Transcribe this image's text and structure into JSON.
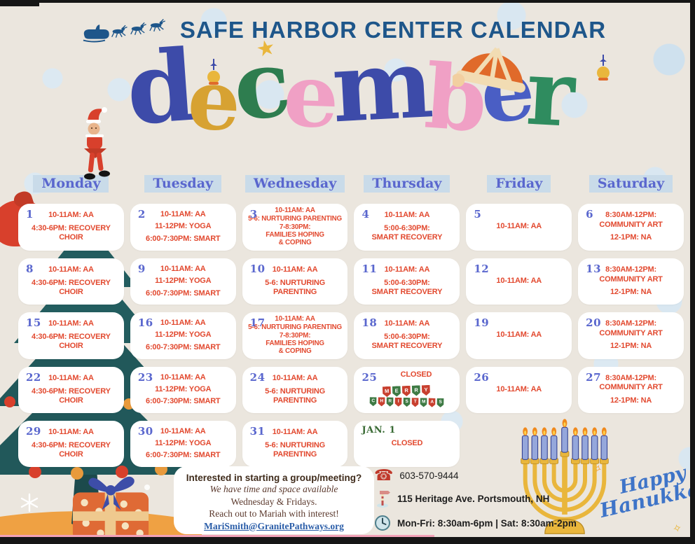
{
  "header": {
    "title": "SAFE HARBOR CENTER CALENDAR",
    "month": "december",
    "month_letters": [
      {
        "ch": "d",
        "color": "#3D4BA9"
      },
      {
        "ch": "e",
        "color": "#D7A232"
      },
      {
        "ch": "c",
        "color": "#2E7D4F"
      },
      {
        "ch": "e",
        "color": "#F0A0C5"
      },
      {
        "ch": "m",
        "color": "#3D4BA9"
      },
      {
        "ch": "b",
        "color": "#F0A0C5"
      },
      {
        "ch": "e",
        "color": "#4A5EC4"
      },
      {
        "ch": "r",
        "color": "#2F8C5F"
      }
    ]
  },
  "weekdays": [
    "Monday",
    "Tuesday",
    "Wednesday",
    "Thursday",
    "Friday",
    "Saturday"
  ],
  "calendar": {
    "rows": [
      [
        {
          "day": "1",
          "events": [
            "10-11AM: AA",
            "4:30-6PM: RECOVERY CHOIR"
          ]
        },
        {
          "day": "2",
          "events": [
            "10-11AM: AA",
            "11-12PM: YOGA",
            "6:00-7:30PM: SMART"
          ]
        },
        {
          "day": "3",
          "compact": true,
          "events": [
            "10-11AM: AA",
            "5-6: NURTURING PARENTING",
            "7-8:30PM:\nFAMILIES HOPING\n& COPING"
          ]
        },
        {
          "day": "4",
          "events": [
            "10-11AM: AA",
            "5:00-6:30PM:\nSMART RECOVERY"
          ]
        },
        {
          "day": "5",
          "events": [
            "10-11AM: AA"
          ]
        },
        {
          "day": "6",
          "events": [
            "8:30AM-12PM:\nCOMMUNITY ART",
            "12-1PM: NA"
          ]
        }
      ],
      [
        {
          "day": "8",
          "events": [
            "10-11AM: AA",
            "4:30-6PM: RECOVERY CHOIR"
          ]
        },
        {
          "day": "9",
          "events": [
            "10-11AM: AA",
            "11-12PM: YOGA",
            "6:00-7:30PM: SMART"
          ]
        },
        {
          "day": "10",
          "events": [
            "10-11AM: AA",
            "5-6: NURTURING\nPARENTING"
          ]
        },
        {
          "day": "11",
          "events": [
            "10-11AM: AA",
            "5:00-6:30PM:\nSMART RECOVERY"
          ]
        },
        {
          "day": "12",
          "events": [
            "10-11AM: AA"
          ]
        },
        {
          "day": "13",
          "events": [
            "8:30AM-12PM:\nCOMMUNITY ART",
            "12-1PM: NA"
          ]
        }
      ],
      [
        {
          "day": "15",
          "events": [
            "10-11AM: AA",
            "4:30-6PM: RECOVERY CHOIR"
          ]
        },
        {
          "day": "16",
          "events": [
            "10-11AM: AA",
            "11-12PM: YOGA",
            "6:00-7:30PM: SMART"
          ]
        },
        {
          "day": "17",
          "compact": true,
          "events": [
            "10-11AM: AA",
            "5-6: NURTURING PARENTING",
            "7-8:30PM:\nFAMILIES HOPING\n& COPING"
          ]
        },
        {
          "day": "18",
          "events": [
            "10-11AM: AA",
            "5:00-6:30PM:\nSMART RECOVERY"
          ]
        },
        {
          "day": "19",
          "events": [
            "10-11AM: AA"
          ]
        },
        {
          "day": "20",
          "events": [
            "8:30AM-12PM:\nCOMMUNITY ART",
            "12-1PM: NA"
          ]
        }
      ],
      [
        {
          "day": "22",
          "events": [
            "10-11AM: AA",
            "4:30-6PM: RECOVERY CHOIR"
          ]
        },
        {
          "day": "23",
          "events": [
            "10-11AM: AA",
            "11-12PM: YOGA",
            "6:00-7:30PM: SMART"
          ]
        },
        {
          "day": "24",
          "events": [
            "10-11AM: AA",
            "5-6: NURTURING\nPARENTING"
          ]
        },
        {
          "day": "25",
          "banner": true,
          "events": [
            "CLOSED"
          ]
        },
        {
          "day": "26",
          "events": [
            "10-11AM: AA"
          ]
        },
        {
          "day": "27",
          "events": [
            "8:30AM-12PM:\nCOMMUNITY ART",
            "12-1PM: NA"
          ]
        }
      ],
      [
        {
          "day": "29",
          "events": [
            "10-11AM: AA",
            "4:30-6PM: RECOVERY CHOIR"
          ]
        },
        {
          "day": "30",
          "events": [
            "10-11AM: AA",
            "11-12PM: YOGA",
            "6:00-7:30PM: SMART"
          ]
        },
        {
          "day": "31",
          "events": [
            "10-11AM: AA",
            "5-6: NURTURING\nPARENTING"
          ]
        },
        {
          "day": "JAN. 1",
          "day_style": "green",
          "events": [
            "CLOSED"
          ]
        },
        null,
        null
      ]
    ]
  },
  "banner": {
    "line1": "MERRY",
    "line2": "CHRISTMAS"
  },
  "info_box": {
    "heading": "Interested in starting a group/meeting?",
    "line1": "We have time and space available",
    "line2": "Wednesday & Fridays.",
    "line3": "Reach out to Mariah with interest!",
    "email": "MariSmith@GranitePathways.org"
  },
  "contact": {
    "phone": "603-570-9444",
    "address": "115 Heritage Ave. Portsmouth, NH",
    "hours": "Mon-Fri: 8:30am-6pm | Sat: 8:30am-2pm"
  },
  "hanukkah": {
    "line1": "Happy",
    "line2": "Hanukkah"
  },
  "icons": {
    "sleigh": "santa-sleigh-icon",
    "phone": "phone-icon",
    "signpost": "signpost-icon",
    "clock": "clock-icon"
  },
  "colors": {
    "background": "#EBE6DE",
    "title_blue": "#1E568A",
    "weekday_blue": "#5A67CE",
    "weekday_bg": "#C9DBE9",
    "event_red": "#E2492F",
    "jan_green": "#3A6B35",
    "banner_red": "#C8402F",
    "banner_green": "#3E7A44",
    "link_blue": "#2A5DA8",
    "hanukkah_blue": "#3E74C8",
    "tree_teal": "#21585A"
  }
}
